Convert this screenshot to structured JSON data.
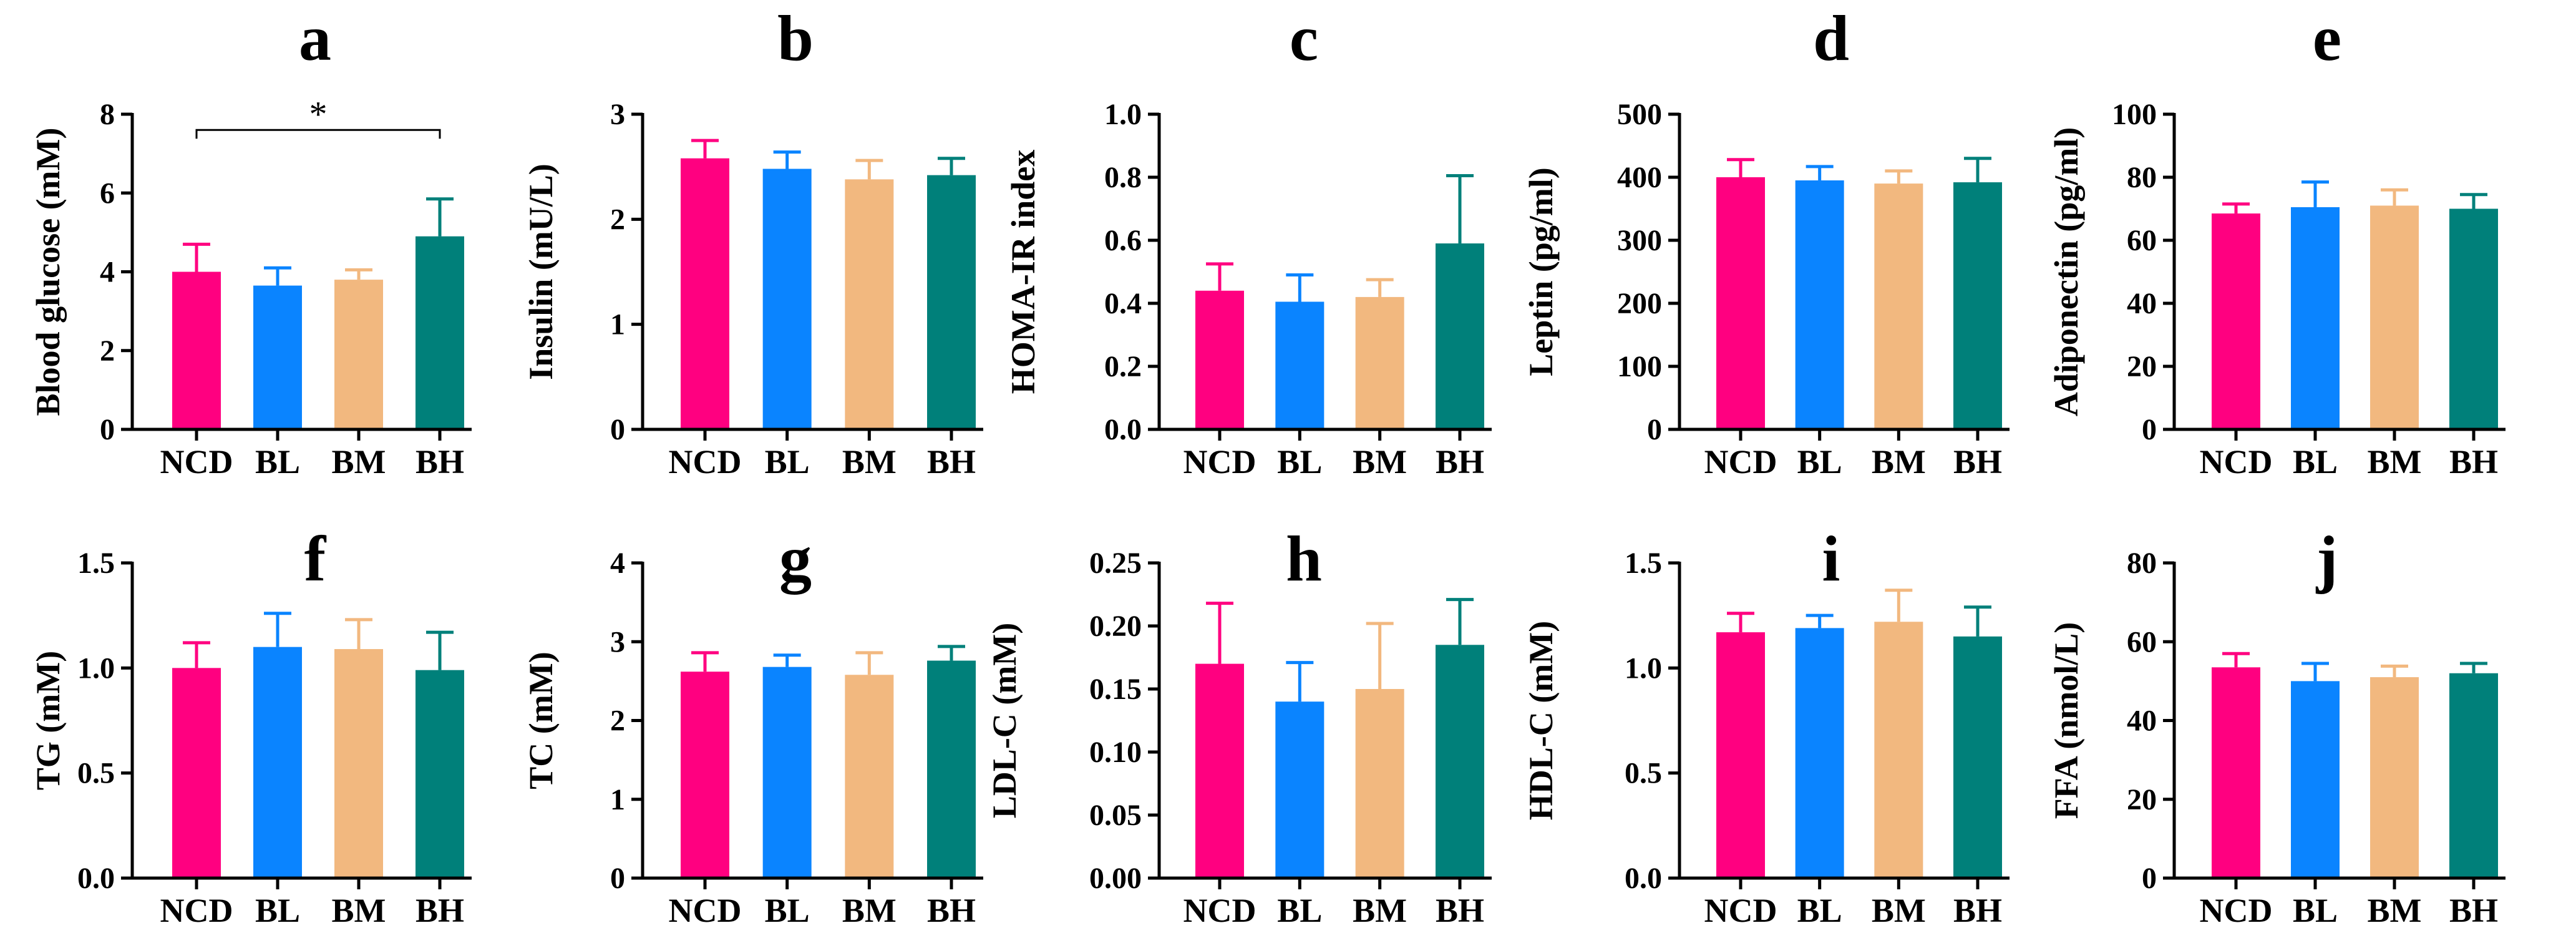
{
  "figure": {
    "categories": [
      "NCD",
      "BL",
      "BM",
      "BH"
    ],
    "colors": {
      "NCD": "#ff0080",
      "BL": "#0a84ff",
      "BM": "#f2b87f",
      "BH": "#00807a"
    }
  },
  "chart_data": [
    {
      "type": "bar",
      "panel": "a",
      "ylabel": "Blood glucose (mM)",
      "ylim": [
        0,
        8
      ],
      "yticks": [
        "0",
        "2",
        "4",
        "6",
        "8"
      ],
      "categories": [
        "NCD",
        "BL",
        "BM",
        "BH"
      ],
      "values": [
        4.0,
        3.65,
        3.8,
        4.9
      ],
      "errors": [
        0.7,
        0.45,
        0.25,
        0.95
      ],
      "significance": {
        "from": "NCD",
        "to": "BH",
        "label": "*",
        "y": 7.6
      }
    },
    {
      "type": "bar",
      "panel": "b",
      "ylabel": "Insulin (mU/L)",
      "ylim": [
        0,
        3
      ],
      "yticks": [
        "0",
        "1",
        "2",
        "3"
      ],
      "categories": [
        "NCD",
        "BL",
        "BM",
        "BH"
      ],
      "values": [
        2.58,
        2.48,
        2.38,
        2.42
      ],
      "errors": [
        0.17,
        0.16,
        0.18,
        0.16
      ]
    },
    {
      "type": "bar",
      "panel": "c",
      "ylabel": "HOMA-IR index",
      "ylim": [
        0,
        1.0
      ],
      "yticks": [
        "0.0",
        "0.2",
        "0.4",
        "0.6",
        "0.8",
        "1.0"
      ],
      "categories": [
        "NCD",
        "BL",
        "BM",
        "BH"
      ],
      "values": [
        0.44,
        0.405,
        0.42,
        0.59
      ],
      "errors": [
        0.085,
        0.085,
        0.055,
        0.215
      ]
    },
    {
      "type": "bar",
      "panel": "d",
      "ylabel": "Leptin (pg/ml)",
      "ylim": [
        0,
        500
      ],
      "yticks": [
        "0",
        "100",
        "200",
        "300",
        "400",
        "500"
      ],
      "categories": [
        "NCD",
        "BL",
        "BM",
        "BH"
      ],
      "values": [
        400,
        395,
        390,
        392
      ],
      "errors": [
        28,
        22,
        20,
        38
      ]
    },
    {
      "type": "bar",
      "panel": "e",
      "ylabel": "Adiponectin (pg/ml)",
      "ylim": [
        0,
        100
      ],
      "yticks": [
        "0",
        "20",
        "40",
        "60",
        "80",
        "100"
      ],
      "categories": [
        "NCD",
        "BL",
        "BM",
        "BH"
      ],
      "values": [
        68.5,
        70.5,
        71,
        70
      ],
      "errors": [
        3,
        8,
        5,
        4.5
      ]
    },
    {
      "type": "bar",
      "panel": "f",
      "ylabel": "TG (mM)",
      "ylim": [
        0,
        1.5
      ],
      "yticks": [
        "0.0",
        "0.5",
        "1.0",
        "1.5"
      ],
      "categories": [
        "NCD",
        "BL",
        "BM",
        "BH"
      ],
      "values": [
        1.0,
        1.1,
        1.09,
        0.99
      ],
      "errors": [
        0.12,
        0.16,
        0.14,
        0.18
      ]
    },
    {
      "type": "bar",
      "panel": "g",
      "ylabel": "TC (mM)",
      "ylim": [
        0,
        4
      ],
      "yticks": [
        "0",
        "1",
        "2",
        "3",
        "4"
      ],
      "categories": [
        "NCD",
        "BL",
        "BM",
        "BH"
      ],
      "values": [
        2.62,
        2.68,
        2.58,
        2.76
      ],
      "errors": [
        0.24,
        0.15,
        0.28,
        0.18
      ]
    },
    {
      "type": "bar",
      "panel": "h",
      "ylabel": "LDL-C (mM)",
      "ylim": [
        0,
        0.25
      ],
      "yticks": [
        "0.00",
        "0.05",
        "0.10",
        "0.15",
        "0.20",
        "0.25"
      ],
      "categories": [
        "NCD",
        "BL",
        "BM",
        "BH"
      ],
      "values": [
        0.17,
        0.14,
        0.15,
        0.185
      ],
      "errors": [
        0.048,
        0.031,
        0.052,
        0.036
      ]
    },
    {
      "type": "bar",
      "panel": "i",
      "ylabel": "HDL-C (mM)",
      "ylim": [
        0,
        1.5
      ],
      "yticks": [
        "0.0",
        "0.5",
        "1.0",
        "1.5"
      ],
      "categories": [
        "NCD",
        "BL",
        "BM",
        "BH"
      ],
      "values": [
        1.17,
        1.19,
        1.22,
        1.15
      ],
      "errors": [
        0.09,
        0.06,
        0.15,
        0.14
      ]
    },
    {
      "type": "bar",
      "panel": "j",
      "ylabel": "FFA (nmol/L)",
      "ylim": [
        0,
        80
      ],
      "yticks": [
        "0",
        "20",
        "40",
        "60",
        "80"
      ],
      "categories": [
        "NCD",
        "BL",
        "BM",
        "BH"
      ],
      "values": [
        53.5,
        50,
        51,
        52
      ],
      "errors": [
        3.5,
        4.5,
        2.8,
        2.5
      ]
    }
  ]
}
